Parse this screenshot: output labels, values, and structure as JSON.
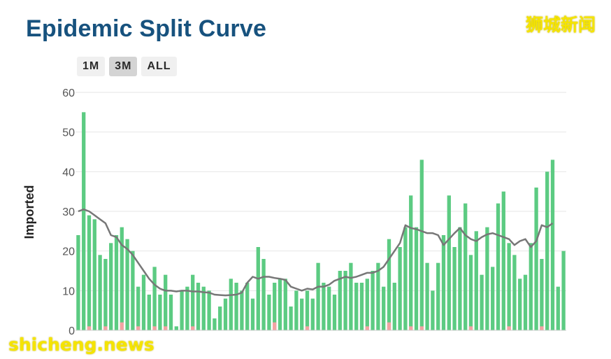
{
  "page": {
    "title": "Epidemic Split Curve"
  },
  "watermarks": {
    "top": "狮城新闻",
    "bottom": "shicheng.news"
  },
  "range_selector": {
    "buttons": [
      "1M",
      "3M",
      "ALL"
    ],
    "selected": "3M"
  },
  "colors": {
    "imported_bar": "#5ccb82",
    "secondary_bar": "#f3a3a3",
    "trend_line": "#777777",
    "title": "#17527e"
  },
  "chart_data": {
    "type": "bar",
    "ylabel": "Imported",
    "ylim": [
      0,
      60
    ],
    "yticks": [
      0,
      10,
      20,
      30,
      40,
      50,
      60
    ],
    "grid": true,
    "series": [
      {
        "name": "",
        "values": [
          24,
          55,
          29,
          28,
          19,
          18,
          22,
          24,
          26,
          23,
          20,
          11,
          14,
          9,
          16,
          9,
          14,
          9,
          1,
          10,
          11,
          14,
          12,
          11,
          10,
          3,
          6,
          8,
          13,
          12,
          10,
          12,
          8,
          21,
          18,
          9,
          12,
          13,
          13,
          6,
          10,
          8,
          10,
          8,
          17,
          12,
          11,
          9,
          15,
          15,
          17,
          12,
          12,
          13,
          15,
          17,
          11,
          23,
          12,
          21,
          26,
          34,
          26,
          43,
          17,
          10,
          17,
          24,
          34,
          21,
          26,
          32,
          19,
          25,
          14,
          26,
          16,
          32,
          35,
          22,
          19,
          13,
          14,
          22,
          36,
          18,
          40,
          43,
          11,
          20
        ]
      },
      {
        "name": "",
        "values": [
          0,
          0,
          1,
          0,
          0,
          1,
          0,
          0,
          2,
          0,
          0,
          1,
          0,
          0,
          1,
          0,
          1,
          0,
          0,
          0,
          0,
          1,
          0,
          0,
          0,
          0,
          0,
          0,
          0,
          0,
          0,
          0,
          0,
          0,
          0,
          0,
          2,
          0,
          0,
          0,
          0,
          0,
          1,
          0,
          0,
          0,
          0,
          0,
          0,
          0,
          0,
          0,
          0,
          1,
          0,
          0,
          0,
          2,
          0,
          0,
          0,
          1,
          0,
          1,
          0,
          0,
          0,
          0,
          0,
          0,
          0,
          0,
          1,
          0,
          0,
          0,
          0,
          0,
          0,
          1,
          0,
          0,
          0,
          0,
          0,
          1,
          0,
          0,
          0,
          0
        ]
      },
      {
        "name": "",
        "values": [
          30,
          30.5,
          30,
          29,
          28,
          27,
          24,
          23.5,
          21.5,
          20.5,
          19,
          17,
          15,
          13,
          11.5,
          10.5,
          10,
          10,
          9.8,
          10,
          10,
          9.8,
          9.8,
          9.6,
          9.5,
          9,
          8.9,
          8.8,
          8.9,
          9,
          9.5,
          12,
          13.5,
          13,
          13.5,
          13.5,
          13.2,
          13,
          12.7,
          11,
          10.5,
          10,
          10.5,
          10.3,
          11,
          11,
          11.5,
          12.5,
          13,
          13.5,
          13.2,
          13.5,
          14,
          14.5,
          14.5,
          15,
          16,
          18,
          20,
          22,
          26.5,
          25.8,
          25.5,
          25,
          24.5,
          24.5,
          24,
          21.5,
          23,
          24.5,
          25.8,
          24,
          23,
          22.5,
          23.5,
          24.2,
          24.5,
          24,
          23.5,
          23,
          21.5,
          22.5,
          23,
          21,
          22.5,
          26.5,
          26,
          27
        ]
      }
    ]
  }
}
